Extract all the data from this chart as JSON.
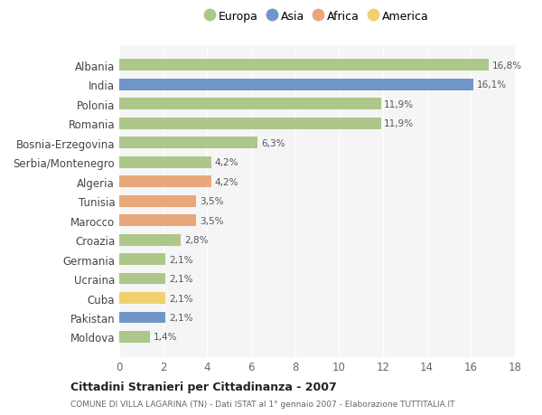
{
  "countries": [
    "Albania",
    "India",
    "Polonia",
    "Romania",
    "Bosnia-Erzegovina",
    "Serbia/Montenegro",
    "Algeria",
    "Tunisia",
    "Marocco",
    "Croazia",
    "Germania",
    "Ucraina",
    "Cuba",
    "Pakistan",
    "Moldova"
  ],
  "values": [
    16.8,
    16.1,
    11.9,
    11.9,
    6.3,
    4.2,
    4.2,
    3.5,
    3.5,
    2.8,
    2.1,
    2.1,
    2.1,
    2.1,
    1.4
  ],
  "labels": [
    "16,8%",
    "16,1%",
    "11,9%",
    "11,9%",
    "6,3%",
    "4,2%",
    "4,2%",
    "3,5%",
    "3,5%",
    "2,8%",
    "2,1%",
    "2,1%",
    "2,1%",
    "2,1%",
    "1,4%"
  ],
  "colors": [
    "#adc68a",
    "#7096c8",
    "#adc68a",
    "#adc68a",
    "#adc68a",
    "#adc68a",
    "#e8a87c",
    "#e8a87c",
    "#e8a87c",
    "#adc68a",
    "#adc68a",
    "#adc68a",
    "#f0d070",
    "#7096c8",
    "#adc68a"
  ],
  "legend_labels": [
    "Europa",
    "Asia",
    "Africa",
    "America"
  ],
  "legend_colors": [
    "#adc68a",
    "#7096c8",
    "#e8a87c",
    "#f0d070"
  ],
  "title": "Cittadini Stranieri per Cittadinanza - 2007",
  "subtitle": "COMUNE DI VILLA LAGARINA (TN) - Dati ISTAT al 1° gennaio 2007 - Elaborazione TUTTITALIA.IT",
  "xlim": [
    0,
    18
  ],
  "xticks": [
    0,
    2,
    4,
    6,
    8,
    10,
    12,
    14,
    16,
    18
  ],
  "bg_color": "#ffffff",
  "plot_bg_color": "#f5f5f5",
  "grid_color": "#ffffff",
  "bar_height": 0.6
}
